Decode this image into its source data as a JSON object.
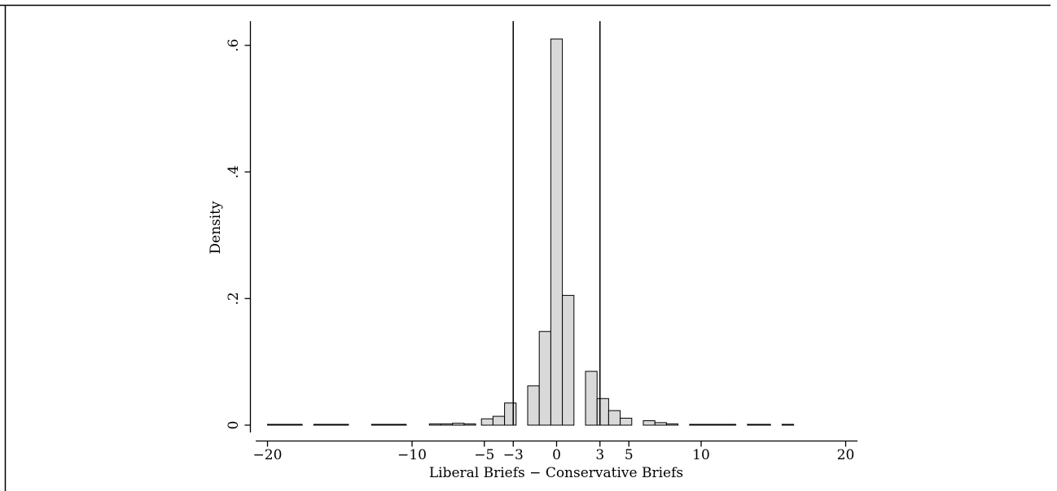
{
  "chart_data": {
    "type": "bar",
    "title": "",
    "xlabel": "Liberal Briefs − Conservative Briefs",
    "ylabel": "Density",
    "xlim": [
      -21,
      21
    ],
    "ylim": [
      0,
      0.65
    ],
    "x_ticks": [
      {
        "value": -20,
        "label": "−20"
      },
      {
        "value": -10,
        "label": "−10"
      },
      {
        "value": -5,
        "label": "−5"
      },
      {
        "value": -3,
        "label": "−3"
      },
      {
        "value": 0,
        "label": "0"
      },
      {
        "value": 3,
        "label": "3"
      },
      {
        "value": 5,
        "label": "5"
      },
      {
        "value": 10,
        "label": "10"
      },
      {
        "value": 20,
        "label": "20"
      }
    ],
    "y_ticks": [
      {
        "value": 0,
        "label": "0"
      },
      {
        "value": 0.2,
        "label": ".2"
      },
      {
        "value": 0.4,
        "label": ".4"
      },
      {
        "value": 0.6,
        "label": ".6"
      }
    ],
    "bin_width": 0.8,
    "bins": [
      {
        "x": -19.6,
        "density": 0.0005
      },
      {
        "x": -18.8,
        "density": 0.0005
      },
      {
        "x": -18.0,
        "density": 0.0005
      },
      {
        "x": -16.4,
        "density": 0.0005
      },
      {
        "x": -15.6,
        "density": 0.0005
      },
      {
        "x": -14.8,
        "density": 0.0005
      },
      {
        "x": -12.4,
        "density": 0.001
      },
      {
        "x": -11.6,
        "density": 0.001
      },
      {
        "x": -10.8,
        "density": 0.001
      },
      {
        "x": -8.4,
        "density": 0.002
      },
      {
        "x": -7.6,
        "density": 0.002
      },
      {
        "x": -6.8,
        "density": 0.003
      },
      {
        "x": -6.0,
        "density": 0.002
      },
      {
        "x": -4.8,
        "density": 0.01
      },
      {
        "x": -4.0,
        "density": 0.014
      },
      {
        "x": -3.2,
        "density": 0.035
      },
      {
        "x": -1.6,
        "density": 0.062
      },
      {
        "x": -0.8,
        "density": 0.148
      },
      {
        "x": 0.0,
        "density": 0.61
      },
      {
        "x": 0.8,
        "density": 0.205
      },
      {
        "x": 2.4,
        "density": 0.085
      },
      {
        "x": 3.2,
        "density": 0.042
      },
      {
        "x": 4.0,
        "density": 0.023
      },
      {
        "x": 4.8,
        "density": 0.011
      },
      {
        "x": 6.4,
        "density": 0.007
      },
      {
        "x": 7.2,
        "density": 0.004
      },
      {
        "x": 8.0,
        "density": 0.002
      },
      {
        "x": 9.6,
        "density": 0.001
      },
      {
        "x": 10.4,
        "density": 0.001
      },
      {
        "x": 11.2,
        "density": 0.0005
      },
      {
        "x": 12.0,
        "density": 0.001
      },
      {
        "x": 13.6,
        "density": 0.0005
      },
      {
        "x": 14.4,
        "density": 0.0005
      },
      {
        "x": 16.0,
        "density": 0.0005
      }
    ],
    "reference_lines_x": [
      -3,
      3
    ],
    "grid": false,
    "legend": "none",
    "colors": {
      "bar_fill": "#d9d9d9",
      "bar_stroke": "#000000",
      "line": "#000000",
      "frame": "#000000"
    }
  }
}
